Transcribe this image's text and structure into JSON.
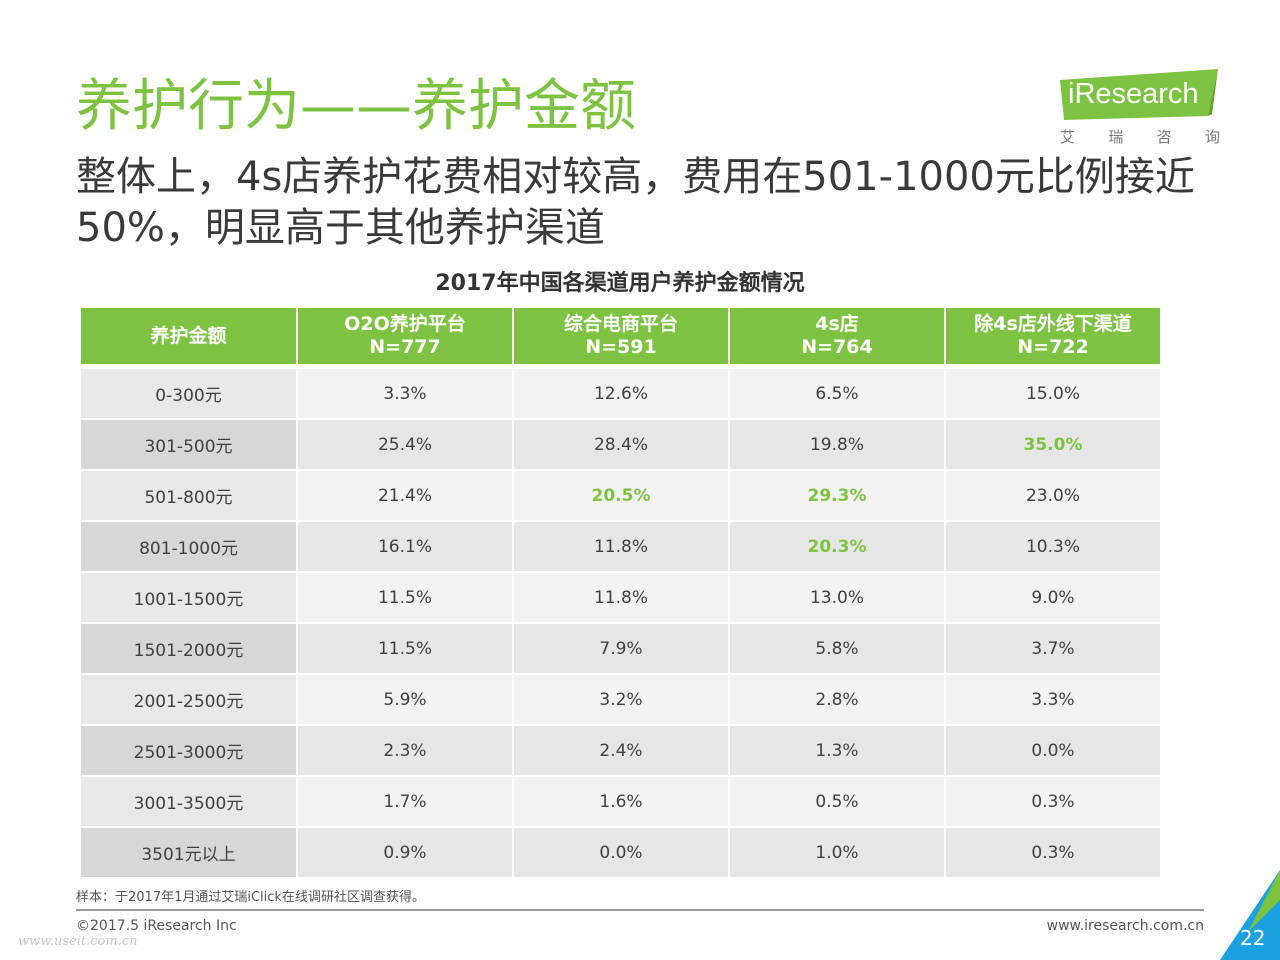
{
  "slide": {
    "title": "养护行为——养护金额",
    "subtitle": "整体上，4s店养护花费相对较高，费用在501-1000元比例接近50%，明显高于其他养护渠道"
  },
  "logo": {
    "brand": "iResearch",
    "chinese": [
      "艾",
      "瑞",
      "咨",
      "询"
    ]
  },
  "table": {
    "title": "2017年中国各渠道用户养护金额情况",
    "headers": [
      {
        "line1": "养护金额",
        "line2": ""
      },
      {
        "line1": "O2O养护平台",
        "line2": "N=777"
      },
      {
        "line1": "综合电商平台",
        "line2": "N=591"
      },
      {
        "line1": "4s店",
        "line2": "N=764"
      },
      {
        "line1": "除4s店外线下渠道",
        "line2": "N=722"
      }
    ],
    "rows": [
      {
        "label": "0-300元",
        "values": [
          "3.3%",
          "12.6%",
          "6.5%",
          "15.0%"
        ],
        "highlight": [
          false,
          false,
          false,
          false
        ]
      },
      {
        "label": "301-500元",
        "values": [
          "25.4%",
          "28.4%",
          "19.8%",
          "35.0%"
        ],
        "highlight": [
          false,
          false,
          false,
          true
        ]
      },
      {
        "label": "501-800元",
        "values": [
          "21.4%",
          "20.5%",
          "29.3%",
          "23.0%"
        ],
        "highlight": [
          false,
          true,
          true,
          false
        ]
      },
      {
        "label": "801-1000元",
        "values": [
          "16.1%",
          "11.8%",
          "20.3%",
          "10.3%"
        ],
        "highlight": [
          false,
          false,
          true,
          false
        ]
      },
      {
        "label": "1001-1500元",
        "values": [
          "11.5%",
          "11.8%",
          "13.0%",
          "9.0%"
        ],
        "highlight": [
          false,
          false,
          false,
          false
        ]
      },
      {
        "label": "1501-2000元",
        "values": [
          "11.5%",
          "7.9%",
          "5.8%",
          "3.7%"
        ],
        "highlight": [
          false,
          false,
          false,
          false
        ]
      },
      {
        "label": "2001-2500元",
        "values": [
          "5.9%",
          "3.2%",
          "2.8%",
          "3.3%"
        ],
        "highlight": [
          false,
          false,
          false,
          false
        ]
      },
      {
        "label": "2501-3000元",
        "values": [
          "2.3%",
          "2.4%",
          "1.3%",
          "0.0%"
        ],
        "highlight": [
          false,
          false,
          false,
          false
        ]
      },
      {
        "label": "3001-3500元",
        "values": [
          "1.7%",
          "1.6%",
          "0.5%",
          "0.3%"
        ],
        "highlight": [
          false,
          false,
          false,
          false
        ]
      },
      {
        "label": "3501元以上",
        "values": [
          "0.9%",
          "0.0%",
          "1.0%",
          "0.3%"
        ],
        "highlight": [
          false,
          false,
          false,
          false
        ]
      }
    ]
  },
  "footer": {
    "note": "样本：于2017年1月通过艾瑞iClick在线调研社区调查获得。",
    "copyright": "©2017.5 iResearch Inc",
    "website": "www.iresearch.com.cn",
    "page_number": "22",
    "watermark": "www.useit.com.cn"
  },
  "colors": {
    "accent": "#7ec242",
    "corner_blue": "#1ba1e2"
  }
}
